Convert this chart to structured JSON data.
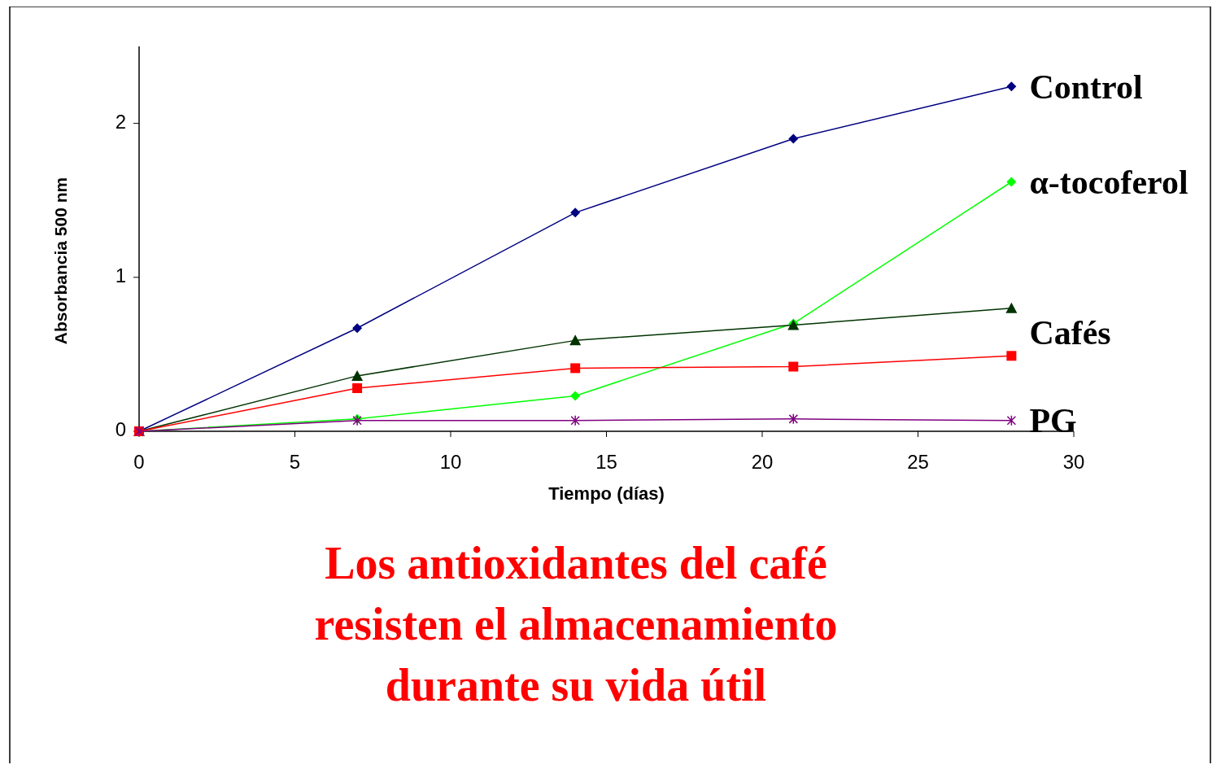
{
  "chart_data": {
    "type": "line",
    "xlabel": "Tiempo (días)",
    "ylabel": "Absorbancia 500 nm",
    "xlim": [
      0,
      30
    ],
    "xticks": [
      0,
      5,
      10,
      15,
      20,
      25,
      30
    ],
    "ylim": [
      0,
      2.5
    ],
    "yticks": [
      0,
      1,
      2
    ],
    "grid": false,
    "series": [
      {
        "name": "Control",
        "color": "#000080",
        "marker": "diamond",
        "x": [
          0,
          7,
          14,
          21,
          28
        ],
        "values": [
          0,
          0.67,
          1.42,
          1.9,
          2.24
        ]
      },
      {
        "name": "α-tocoferol",
        "color": "#00ff00",
        "marker": "diamond",
        "x": [
          0,
          7,
          14,
          21,
          28
        ],
        "values": [
          0,
          0.08,
          0.23,
          0.7,
          1.62
        ]
      },
      {
        "name": "Cafés",
        "color": "#003300",
        "marker": "triangle",
        "x": [
          0,
          7,
          14,
          21,
          28
        ],
        "values": [
          0,
          0.36,
          0.59,
          0.69,
          0.8
        ]
      },
      {
        "color": "#ff0000",
        "marker": "square",
        "x": [
          0,
          7,
          14,
          21,
          28
        ],
        "values": [
          0,
          0.28,
          0.41,
          0.42,
          0.49
        ]
      },
      {
        "name": "PG",
        "color": "#800080",
        "marker": "cross",
        "x": [
          0,
          7,
          14,
          21,
          28
        ],
        "values": [
          0,
          0.07,
          0.07,
          0.08,
          0.07
        ]
      }
    ],
    "annotations": [
      "Los antioxidantes del café",
      "resisten el almacenamiento",
      "durante su vida útil"
    ]
  }
}
